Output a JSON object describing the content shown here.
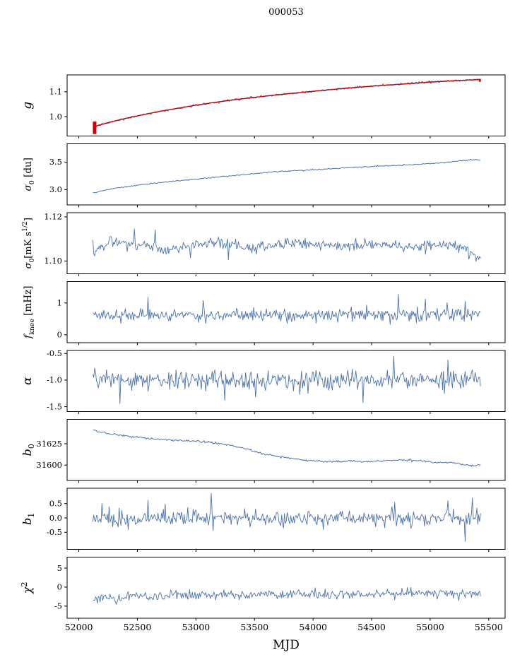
{
  "figure": {
    "title": "000053",
    "xlabel": "MJD"
  },
  "chart_data": {
    "type": "line",
    "title": "000053",
    "xlabel": "MJD",
    "x_range": [
      51900,
      55640
    ],
    "x_data_span": [
      52120,
      55430
    ],
    "x_ticks": {
      "values": [
        52000,
        52500,
        53000,
        53500,
        54000,
        54500,
        55000,
        55500
      ],
      "labels": [
        "52000",
        "52500",
        "53000",
        "53500",
        "54000",
        "54500",
        "55000",
        "55500"
      ]
    },
    "line_color": "#4c72b0",
    "fit_color": "#cc0000",
    "panels": [
      {
        "id": "g",
        "ylabel_parts": [
          {
            "t": "g",
            "i": 1
          }
        ],
        "ylabel_fs": 17,
        "ylim": [
          0.922,
          1.168
        ],
        "yticks": {
          "values": [
            1.0,
            1.1
          ],
          "labels": [
            "1.0",
            "1.1"
          ]
        },
        "series": [
          {
            "kind": "noisy",
            "seed": 3,
            "sigma": 0.0022,
            "width": 1.0,
            "keypoints": [
              [
                52120,
                0.958
              ],
              [
                52250,
                0.976
              ],
              [
                52400,
                0.993
              ],
              [
                52550,
                1.008
              ],
              [
                52700,
                1.022
              ],
              [
                52850,
                1.034
              ],
              [
                53000,
                1.046
              ],
              [
                53200,
                1.06
              ],
              [
                53400,
                1.072
              ],
              [
                53600,
                1.083
              ],
              [
                53800,
                1.093
              ],
              [
                54000,
                1.102
              ],
              [
                54200,
                1.111
              ],
              [
                54400,
                1.119
              ],
              [
                54600,
                1.126
              ],
              [
                54800,
                1.132
              ],
              [
                55000,
                1.139
              ],
              [
                55150,
                1.143
              ],
              [
                55300,
                1.147
              ],
              [
                55430,
                1.149
              ]
            ]
          },
          {
            "kind": "smooth",
            "color": "fit",
            "width": 1.4,
            "keypoints": [
              [
                52120,
                0.958
              ],
              [
                52250,
                0.976
              ],
              [
                52400,
                0.993
              ],
              [
                52550,
                1.008
              ],
              [
                52700,
                1.022
              ],
              [
                52850,
                1.034
              ],
              [
                53000,
                1.046
              ],
              [
                53200,
                1.06
              ],
              [
                53400,
                1.072
              ],
              [
                53600,
                1.083
              ],
              [
                53800,
                1.093
              ],
              [
                54000,
                1.102
              ],
              [
                54200,
                1.111
              ],
              [
                54400,
                1.119
              ],
              [
                54600,
                1.126
              ],
              [
                54800,
                1.132
              ],
              [
                55000,
                1.139
              ],
              [
                55150,
                1.143
              ],
              [
                55300,
                1.147
              ],
              [
                55430,
                1.149
              ]
            ]
          }
        ],
        "markers": [
          {
            "type": "vseg",
            "x": 52135,
            "y0": 0.93,
            "y1": 0.98,
            "w": 5
          },
          {
            "type": "vseg",
            "x": 55425,
            "y0": 1.14,
            "y1": 1.152,
            "w": 2.5
          }
        ]
      },
      {
        "id": "sigma0-du",
        "ylabel_parts": [
          {
            "t": "σ",
            "i": 1
          },
          {
            "t": "0",
            "sub": 1
          },
          {
            "t": " [du]"
          }
        ],
        "ylabel_fs": 13.5,
        "ylim": [
          2.722,
          3.833
        ],
        "yticks": {
          "values": [
            3.0,
            3.5
          ],
          "labels": [
            "3.0",
            "3.5"
          ]
        },
        "series": [
          {
            "kind": "noisy",
            "seed": 5,
            "sigma": 0.005,
            "width": 1.0,
            "keypoints": [
              [
                52120,
                2.945
              ],
              [
                52300,
                3.02
              ],
              [
                52500,
                3.08
              ],
              [
                52700,
                3.13
              ],
              [
                52900,
                3.17
              ],
              [
                53100,
                3.21
              ],
              [
                53300,
                3.25
              ],
              [
                53500,
                3.29
              ],
              [
                53700,
                3.33
              ],
              [
                53900,
                3.35
              ],
              [
                54100,
                3.37
              ],
              [
                54300,
                3.4
              ],
              [
                54500,
                3.42
              ],
              [
                54700,
                3.44
              ],
              [
                54900,
                3.46
              ],
              [
                55100,
                3.49
              ],
              [
                55250,
                3.52
              ],
              [
                55380,
                3.545
              ],
              [
                55430,
                3.535
              ]
            ]
          }
        ]
      },
      {
        "id": "sigma0-mk",
        "ylabel_parts": [
          {
            "t": "σ",
            "i": 1
          },
          {
            "t": "0",
            "sub": 1
          },
          {
            "t": "[mK s"
          },
          {
            "t": "1/2",
            "sup": 1
          },
          {
            "t": "]"
          }
        ],
        "ylabel_fs": 13,
        "ylim": [
          1.0942,
          1.1219
        ],
        "yticks": {
          "values": [
            1.1,
            1.12
          ],
          "labels": [
            "1.10",
            "1.12"
          ]
        },
        "series": [
          {
            "kind": "noisy",
            "seed": 7,
            "sigma": 0.0013,
            "spike_prob": 0.03,
            "spike_mag": 2.0,
            "width": 0.9,
            "force": [
              [
                53280,
                1.1005
              ],
              [
                55390,
                1.0998
              ],
              [
                52950,
                1.1015
              ]
            ],
            "keypoints": [
              [
                52120,
                1.1035
              ],
              [
                52250,
                1.108
              ],
              [
                52400,
                1.1085
              ],
              [
                52600,
                1.107
              ],
              [
                52750,
                1.105
              ],
              [
                52900,
                1.1065
              ],
              [
                53100,
                1.108
              ],
              [
                53300,
                1.1075
              ],
              [
                53500,
                1.106
              ],
              [
                53700,
                1.1075
              ],
              [
                53900,
                1.108
              ],
              [
                54100,
                1.1075
              ],
              [
                54300,
                1.107
              ],
              [
                54500,
                1.1075
              ],
              [
                54700,
                1.1065
              ],
              [
                54900,
                1.106
              ],
              [
                55050,
                1.1075
              ],
              [
                55200,
                1.1075
              ],
              [
                55320,
                1.105
              ],
              [
                55430,
                1.1015
              ]
            ]
          }
        ]
      },
      {
        "id": "fknee",
        "ylabel_parts": [
          {
            "t": "f",
            "i": 1
          },
          {
            "t": "knee",
            "sub": 1
          },
          {
            "t": " [mHz]"
          }
        ],
        "ylabel_fs": 13.5,
        "ylim": [
          -0.25,
          1.673
        ],
        "yticks": {
          "values": [
            0,
            1
          ],
          "labels": [
            "0",
            "1"
          ]
        },
        "series": [
          {
            "kind": "noisy",
            "seed": 9,
            "sigma": 0.1,
            "spike_prob": 0.012,
            "spike_mag": 2.6,
            "width": 0.9,
            "force": [
              [
                54730,
                1.28
              ],
              [
                52590,
                1.18
              ],
              [
                53060,
                1.08
              ],
              [
                54960,
                1.12
              ],
              [
                55300,
                1.05
              ]
            ],
            "keypoints": [
              [
                52120,
                0.63
              ],
              [
                53000,
                0.62
              ],
              [
                54000,
                0.63
              ],
              [
                55000,
                0.62
              ],
              [
                55430,
                0.63
              ]
            ]
          }
        ]
      },
      {
        "id": "alpha",
        "ylabel_parts": [
          {
            "t": "α",
            "i": 1
          }
        ],
        "ylabel_fs": 17,
        "ylim": [
          -1.592,
          -0.443
        ],
        "yticks": {
          "values": [
            -1.5,
            -1.0,
            -0.5
          ],
          "labels": [
            "-1.5",
            "-1.0",
            "-0.5"
          ]
        },
        "series": [
          {
            "kind": "noisy",
            "seed": 13,
            "sigma": 0.085,
            "spike_prob": 0.015,
            "spike_mag": 2.2,
            "width": 0.9,
            "force": [
              [
                54690,
                -0.55
              ],
              [
                55150,
                -0.62
              ],
              [
                52350,
                -1.44
              ],
              [
                54430,
                -1.42
              ],
              [
                53250,
                -1.38
              ]
            ],
            "keypoints": [
              [
                52120,
                -1.0
              ],
              [
                53500,
                -1.01
              ],
              [
                54500,
                -0.99
              ],
              [
                55430,
                -0.97
              ]
            ]
          }
        ]
      },
      {
        "id": "b0",
        "ylabel_parts": [
          {
            "t": "b",
            "i": 1
          },
          {
            "t": "0",
            "sub": 1
          }
        ],
        "ylabel_fs": 16,
        "ylim": [
          31582,
          31653.5
        ],
        "yticks": {
          "values": [
            31600,
            31625
          ],
          "labels": [
            "31600",
            "31625"
          ]
        },
        "series": [
          {
            "kind": "noisy",
            "seed": 17,
            "sigma": 0.55,
            "width": 1.0,
            "keypoints": [
              [
                52120,
                31641
              ],
              [
                52250,
                31637
              ],
              [
                52400,
                31634
              ],
              [
                52550,
                31632
              ],
              [
                52700,
                31630
              ],
              [
                52850,
                31629
              ],
              [
                53000,
                31628
              ],
              [
                53100,
                31627
              ],
              [
                53250,
                31624
              ],
              [
                53400,
                31620
              ],
              [
                53550,
                31614
              ],
              [
                53700,
                31610
              ],
              [
                53850,
                31607
              ],
              [
                54000,
                31605
              ],
              [
                54150,
                31604
              ],
              [
                54300,
                31605
              ],
              [
                54450,
                31604
              ],
              [
                54600,
                31605
              ],
              [
                54750,
                31606
              ],
              [
                54900,
                31605
              ],
              [
                55050,
                31603
              ],
              [
                55200,
                31603
              ],
              [
                55300,
                31600
              ],
              [
                55380,
                31599
              ],
              [
                55430,
                31601
              ]
            ]
          }
        ]
      },
      {
        "id": "b1",
        "ylabel_parts": [
          {
            "t": "b",
            "i": 1
          },
          {
            "t": "1",
            "sub": 1
          }
        ],
        "ylabel_fs": 16,
        "ylim": [
          -1.096,
          1.034
        ],
        "yticks": {
          "values": [
            -0.5,
            0.0,
            0.5
          ],
          "labels": [
            "-0.5",
            "0.0",
            "0.5"
          ]
        },
        "series": [
          {
            "kind": "noisy",
            "seed": 19,
            "sigma": 0.13,
            "spike_prob": 0.02,
            "spike_mag": 2.5,
            "width": 0.9,
            "force": [
              [
                52590,
                0.62
              ],
              [
                52200,
                0.5
              ],
              [
                53150,
                -0.45
              ],
              [
                54700,
                0.55
              ],
              [
                55150,
                0.6
              ],
              [
                55300,
                -0.82
              ],
              [
                55360,
                0.7
              ]
            ],
            "keypoints": [
              [
                52120,
                0.05
              ],
              [
                52300,
                -0.1
              ],
              [
                52600,
                -0.05
              ],
              [
                53000,
                0.0
              ],
              [
                54000,
                0.0
              ],
              [
                55000,
                0.0
              ],
              [
                55430,
                0.05
              ]
            ]
          }
        ]
      },
      {
        "id": "chi2",
        "ylabel_parts": [
          {
            "t": "χ",
            "i": 1
          },
          {
            "t": "2",
            "sup": 1
          }
        ],
        "ylabel_fs": 16,
        "ylim": [
          -8.2,
          7.9
        ],
        "yticks": {
          "values": [
            -5,
            0,
            5
          ],
          "labels": [
            "-5",
            "0",
            "5"
          ]
        },
        "series": [
          {
            "kind": "noisy",
            "seed": 23,
            "sigma": 0.6,
            "spike_prob": 0.01,
            "spike_mag": 1.8,
            "width": 0.9,
            "keypoints": [
              [
                52120,
                -2.4
              ],
              [
                52300,
                -2.9
              ],
              [
                52500,
                -2.4
              ],
              [
                53000,
                -2.1
              ],
              [
                53500,
                -2.05
              ],
              [
                54000,
                -1.9
              ],
              [
                54500,
                -1.8
              ],
              [
                55000,
                -1.7
              ],
              [
                55430,
                -1.6
              ]
            ]
          }
        ]
      }
    ]
  }
}
